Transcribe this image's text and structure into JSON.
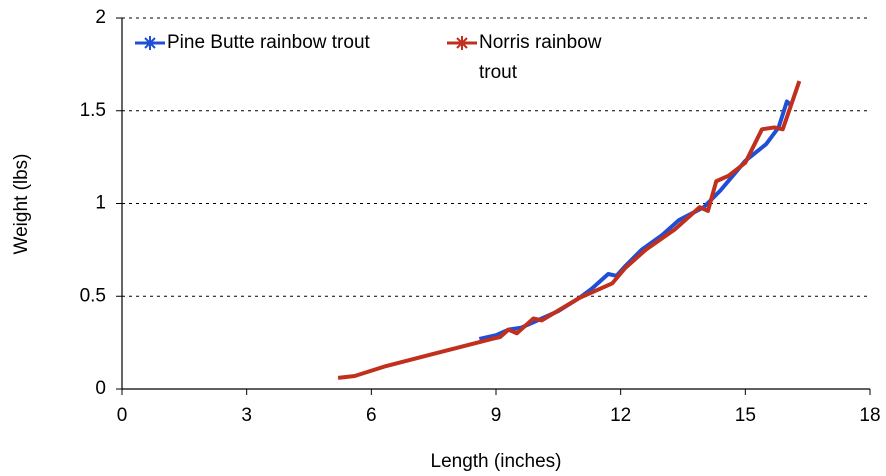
{
  "chart_data": {
    "type": "line",
    "xlabel": "Length (inches)",
    "ylabel": "Weight (lbs)",
    "xlim": [
      0,
      18
    ],
    "xticks": [
      0,
      3,
      6,
      9,
      12,
      15,
      18
    ],
    "ylim": [
      0,
      2
    ],
    "yticks": [
      0,
      0.5,
      1,
      1.5,
      2
    ],
    "grid": true,
    "legend": "upper left",
    "series": [
      {
        "name": "Pine Butte rainbow trout",
        "color": "#1f4fd6",
        "x": [
          8.6,
          9.0,
          9.3,
          9.6,
          10.0,
          10.5,
          11.0,
          11.3,
          11.7,
          11.9,
          12.1,
          12.5,
          13.0,
          13.4,
          14.0,
          14.4,
          14.7,
          15.0,
          15.5,
          15.8,
          16.0,
          16.1
        ],
        "values": [
          0.27,
          0.29,
          0.32,
          0.33,
          0.37,
          0.42,
          0.49,
          0.54,
          0.62,
          0.61,
          0.66,
          0.75,
          0.83,
          0.91,
          0.98,
          1.07,
          1.15,
          1.23,
          1.32,
          1.41,
          1.55,
          1.53
        ]
      },
      {
        "name": "Norris rainbow trout",
        "color": "#c0301c",
        "x": [
          5.2,
          5.6,
          6.3,
          7.5,
          8.9,
          9.1,
          9.3,
          9.5,
          9.7,
          9.9,
          10.1,
          11.0,
          11.8,
          12.1,
          12.6,
          13.3,
          13.9,
          14.1,
          14.3,
          14.6,
          15.0,
          15.4,
          15.7,
          15.9,
          16.3
        ],
        "values": [
          0.06,
          0.07,
          0.12,
          0.19,
          0.27,
          0.28,
          0.32,
          0.3,
          0.34,
          0.38,
          0.37,
          0.49,
          0.57,
          0.65,
          0.75,
          0.86,
          0.98,
          0.96,
          1.12,
          1.15,
          1.22,
          1.4,
          1.41,
          1.4,
          1.66
        ]
      }
    ]
  }
}
